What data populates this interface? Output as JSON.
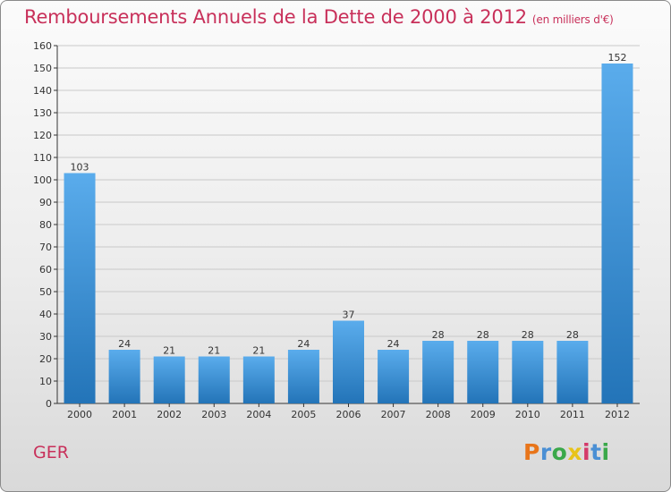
{
  "header": {
    "title": "Remboursements Annuels de la Dette de 2000 à 2012",
    "unit": "(en milliers d'€)"
  },
  "footer": {
    "commune": "GER",
    "logo_text": "Proxiti",
    "logo_colors": [
      "#e8751a",
      "#4a8fd4",
      "#3aa84a",
      "#e8c31a",
      "#d43a6a",
      "#4a8fd4",
      "#3aa84a"
    ]
  },
  "colors": {
    "bar_top": "#5aacec",
    "bar_bottom": "#2374b8",
    "grid": "#c9c9c9",
    "axis": "#333333",
    "accent": "#c8305a"
  },
  "chart_data": {
    "type": "bar",
    "categories": [
      "2000",
      "2001",
      "2002",
      "2003",
      "2004",
      "2005",
      "2006",
      "2007",
      "2008",
      "2009",
      "2010",
      "2011",
      "2012"
    ],
    "values": [
      103,
      24,
      21,
      21,
      21,
      24,
      37,
      24,
      28,
      28,
      28,
      28,
      152
    ],
    "ylim": [
      0,
      160
    ],
    "yticks": [
      0,
      10,
      20,
      30,
      40,
      50,
      60,
      70,
      80,
      90,
      100,
      110,
      120,
      130,
      140,
      150,
      160
    ],
    "grid": true,
    "data_labels": true
  }
}
